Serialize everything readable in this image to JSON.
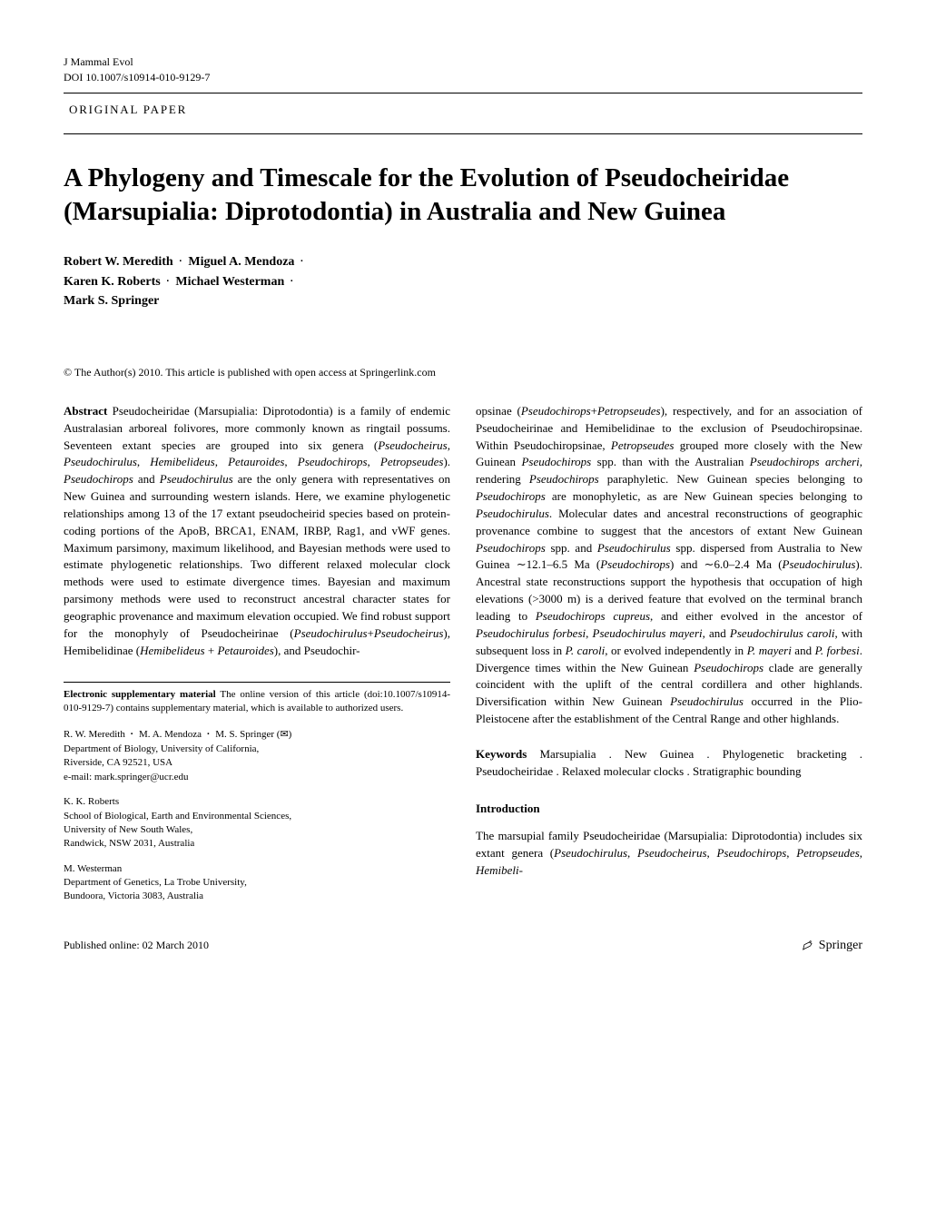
{
  "header": {
    "journal": "J Mammal Evol",
    "doi": "DOI 10.1007/s10914-010-9129-7",
    "paper_type": "ORIGINAL PAPER"
  },
  "title": "A Phylogeny and Timescale for the Evolution of Pseudocheiridae (Marsupialia: Diprotodontia) in Australia and New Guinea",
  "authors": {
    "line1_a": "Robert W. Meredith",
    "line1_b": "Miguel A. Mendoza",
    "line2_a": "Karen K. Roberts",
    "line2_b": "Michael Westerman",
    "line3_a": "Mark S. Springer"
  },
  "copyright": "© The Author(s) 2010. This article is published with open access at Springerlink.com",
  "abstract": {
    "label": "Abstract",
    "col1_html": "Pseudocheiridae (Marsupialia: Diprotodontia) is a family of endemic Australasian arboreal folivores, more commonly known as ringtail possums. Seventeen extant species are grouped into six genera (<span class='italic'>Pseudocheirus</span>, <span class='italic'>Pseudochirulus</span>, <span class='italic'>Hemibelideus</span>, <span class='italic'>Petauroides</span>, <span class='italic'>Pseudochirops</span>, <span class='italic'>Petropseudes</span>). <span class='italic'>Pseudochirops</span> and <span class='italic'>Pseudochirulus</span> are the only genera with representatives on New Guinea and surrounding western islands. Here, we examine phylogenetic relationships among 13 of the 17 extant pseudocheirid species based on protein-coding portions of the ApoB, BRCA1, ENAM, IRBP, Rag1, and vWF genes. Maximum parsimony, maximum likelihood, and Bayesian methods were used to estimate phylogenetic relationships. Two different relaxed molecular clock methods were used to estimate divergence times. Bayesian and maximum parsimony methods were used to reconstruct ancestral character states for geographic provenance and maximum elevation occupied. We find robust support for the monophyly of Pseudocheirinae (<span class='italic'>Pseudochirulus</span>+<span class='italic'>Pseudocheirus</span>), Hemibelidinae (<span class='italic'>Hemibelideus</span> + <span class='italic'>Petauroides</span>), and Pseudochir-",
    "col2_html": "opsinae (<span class='italic'>Pseudochirops</span>+<span class='italic'>Petropseudes</span>), respectively, and for an association of Pseudocheirinae and Hemibelidinae to the exclusion of Pseudochiropsinae. Within Pseudochiropsinae, <span class='italic'>Petropseudes</span> grouped more closely with the New Guinean <span class='italic'>Pseudochirops</span> spp. than with the Australian <span class='italic'>Pseudochirops archeri,</span> rendering <span class='italic'>Pseudochirops</span> paraphyletic. New Guinean species belonging to <span class='italic'>Pseudochirops</span> are monophyletic, as are New Guinean species belonging to <span class='italic'>Pseudochirulus</span>. Molecular dates and ancestral reconstructions of geographic provenance combine to suggest that the ancestors of extant New Guinean <span class='italic'>Pseudochirops</span> spp. and <span class='italic'>Pseudochirulus</span> spp. dispersed from Australia to New Guinea ∼12.1–6.5 Ma (<span class='italic'>Pseudochirops</span>) and ∼6.0–2.4 Ma (<span class='italic'>Pseudochirulus</span>). Ancestral state reconstructions support the hypothesis that occupation of high elevations (>3000 m) is a derived feature that evolved on the terminal branch leading to <span class='italic'>Pseudochirops cupreus</span>, and either evolved in the ancestor of <span class='italic'>Pseudochirulus forbesi</span>, <span class='italic'>Pseudochirulus mayeri</span>, and <span class='italic'>Pseudochirulus caroli</span>, with subsequent loss in <span class='italic'>P. caroli</span>, or evolved independently in <span class='italic'>P. mayeri</span> and <span class='italic'>P. forbesi</span>. Divergence times within the New Guinean <span class='italic'>Pseudochirops</span> clade are generally coincident with the uplift of the central cordillera and other highlands. Diversification within New Guinean <span class='italic'>Pseudochirulus</span> occurred in the Plio-Pleistocene after the establishment of the Central Range and other highlands."
  },
  "keywords": {
    "label": "Keywords",
    "text": "Marsupialia . New Guinea . Phylogenetic bracketing . Pseudocheiridae . Relaxed molecular clocks . Stratigraphic bounding"
  },
  "introduction": {
    "heading": "Introduction",
    "text_html": "The marsupial family Pseudocheiridae (Marsupialia: Diprotodontia) includes six extant genera (<span class='italic'>Pseudochirulus</span>, <span class='italic'>Pseudocheirus</span>, <span class='italic'>Pseudochirops</span>, <span class='italic'>Petropseudes</span>, <span class='italic'>Hemibeli-</span>"
  },
  "esm": {
    "label": "Electronic supplementary material",
    "text": "The online version of this article (doi:10.1007/s10914-010-9129-7) contains supplementary material, which is available to authorized users."
  },
  "affiliations": [
    {
      "authors_html": "R. W. Meredith <span class='author-sep'>·</span> M. A. Mendoza <span class='author-sep'>·</span> M. S. Springer (<span class='envelope'>✉</span>)",
      "dept": "Department of Biology, University of California,",
      "addr": "Riverside, CA 92521, USA",
      "email_label": "e-mail:",
      "email": "mark.springer@ucr.edu"
    },
    {
      "authors_html": "K. K. Roberts",
      "dept": "School of Biological, Earth and Environmental Sciences,",
      "dept2": "University of New South Wales,",
      "addr": "Randwick, NSW 2031, Australia"
    },
    {
      "authors_html": "M. Westerman",
      "dept": "Department of Genetics, La Trobe University,",
      "addr": "Bundoora, Victoria 3083, Australia"
    }
  ],
  "footer": {
    "published": "Published online: 02 March 2010",
    "publisher": "Springer"
  }
}
